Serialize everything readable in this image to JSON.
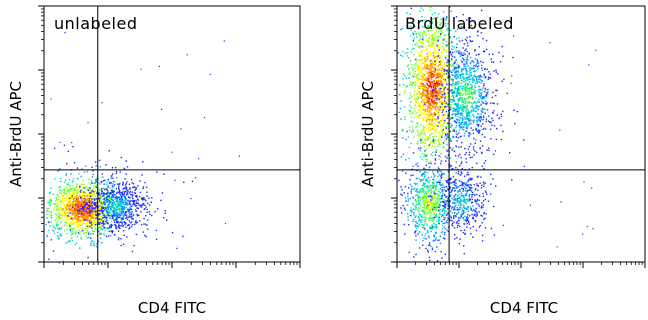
{
  "figure": {
    "colormap": [
      "#1f2bff",
      "#00a0ff",
      "#00e0c0",
      "#66ff33",
      "#ffff00",
      "#ff8800",
      "#ff1100"
    ]
  },
  "chart_data": [
    {
      "type": "scatter",
      "plot_style": "pseudocolor density dot plot",
      "title": "unlabeled",
      "xlabel": "CD4 FITC",
      "ylabel": "Anti-BrdU APC",
      "x_scale": "log",
      "y_scale": "log",
      "xlim": [
        0,
        100
      ],
      "ylim": [
        0,
        100
      ],
      "gates": {
        "x": 21,
        "y": 36
      },
      "populations": [
        {
          "x": 15,
          "y": 21,
          "spread_x": 6,
          "spread_y": 5,
          "count": 1500,
          "peak": "red"
        },
        {
          "x": 28,
          "y": 22,
          "spread_x": 6,
          "spread_y": 4.5,
          "count": 800,
          "peak": "cyan"
        }
      ]
    },
    {
      "type": "scatter",
      "plot_style": "pseudocolor density dot plot",
      "title": "BrdU labeled",
      "xlabel": "CD4 FITC",
      "ylabel": "Anti-BrdU APC",
      "x_scale": "log",
      "y_scale": "log",
      "xlim": [
        0,
        100
      ],
      "ylim": [
        0,
        100
      ],
      "gates": {
        "x": 21,
        "y": 36
      },
      "populations": [
        {
          "x": 14,
          "y": 68,
          "spread_x": 4.5,
          "spread_y": 13,
          "count": 1700,
          "peak": "red"
        },
        {
          "x": 28,
          "y": 65,
          "spread_x": 5,
          "spread_y": 10,
          "count": 1000,
          "peak": "green"
        },
        {
          "x": 13,
          "y": 23,
          "spread_x": 4.5,
          "spread_y": 7,
          "count": 700,
          "peak": "yellow"
        },
        {
          "x": 26,
          "y": 24,
          "spread_x": 5,
          "spread_y": 6,
          "count": 450,
          "peak": "cyan"
        }
      ]
    }
  ]
}
